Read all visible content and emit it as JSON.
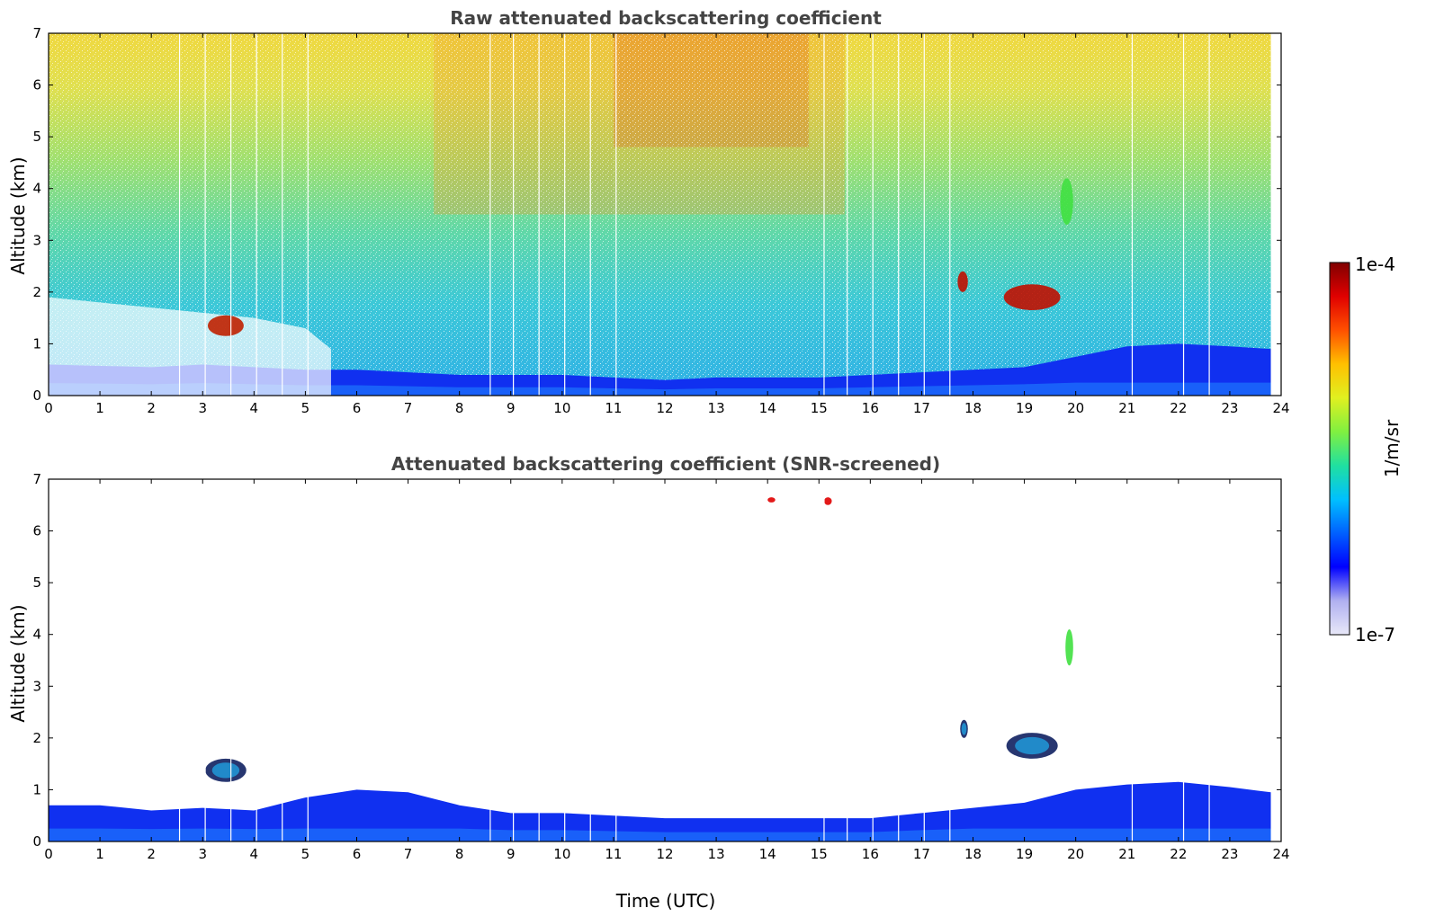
{
  "chart_data": [
    {
      "type": "heatmap",
      "title": "Raw attenuated backscattering coefficient",
      "xlabel": "",
      "ylabel": "Altitude (km)",
      "xlim": [
        0,
        24
      ],
      "ylim": [
        0,
        7
      ],
      "xticks": [
        "0",
        "1",
        "2",
        "3",
        "4",
        "5",
        "6",
        "7",
        "8",
        "9",
        "10",
        "11",
        "12",
        "13",
        "14",
        "15",
        "16",
        "17",
        "18",
        "19",
        "20",
        "21",
        "22",
        "23",
        "24"
      ],
      "yticks": [
        "0",
        "1",
        "2",
        "3",
        "4",
        "5",
        "6",
        "7"
      ],
      "data_end_time": 23.8,
      "gap_times": [
        2.55,
        3.05,
        3.55,
        4.05,
        4.55,
        5.05,
        8.6,
        9.05,
        9.55,
        10.05,
        10.55,
        11.05,
        15.1,
        15.55,
        16.05,
        16.55,
        17.05,
        17.55,
        21.1,
        22.1,
        22.6
      ],
      "features": [
        {
          "name": "boundary layer",
          "t": [
            0,
            2,
            3,
            4,
            5,
            6,
            7,
            8,
            9,
            10,
            11,
            12,
            13,
            14,
            15,
            16,
            17,
            18,
            19,
            20,
            21,
            22,
            23,
            23.8
          ],
          "top_km": [
            0.6,
            0.55,
            0.6,
            0.55,
            0.5,
            0.5,
            0.45,
            0.4,
            0.4,
            0.4,
            0.35,
            0.3,
            0.35,
            0.35,
            0.35,
            0.4,
            0.45,
            0.5,
            0.55,
            0.75,
            0.95,
            1.0,
            0.95,
            0.9
          ]
        },
        {
          "name": "aerosol layer",
          "t": [
            0,
            1,
            2,
            3,
            4,
            5,
            5.5
          ],
          "top_km": [
            1.9,
            1.8,
            1.7,
            1.6,
            1.5,
            1.3,
            0.9
          ]
        },
        {
          "name": "low cloud",
          "t_start": 3.1,
          "t_end": 3.8,
          "z_bottom_km": 1.15,
          "z_top_km": 1.55
        },
        {
          "name": "cloud",
          "t_start": 18.6,
          "t_end": 19.7,
          "z_bottom_km": 1.65,
          "z_top_km": 2.15
        },
        {
          "name": "cloud",
          "t_start": 17.7,
          "t_end": 17.9,
          "z_bottom_km": 2.0,
          "z_top_km": 2.4
        },
        {
          "name": "cloud",
          "t_start": 19.7,
          "t_end": 19.95,
          "z_bottom_km": 3.3,
          "z_top_km": 4.2
        }
      ]
    },
    {
      "type": "heatmap",
      "title": "Attenuated backscattering coefficient (SNR-screened)",
      "xlabel": "Time (UTC)",
      "ylabel": "Altitude (km)",
      "xlim": [
        0,
        24
      ],
      "ylim": [
        0,
        7
      ],
      "xticks": [
        "0",
        "1",
        "2",
        "3",
        "4",
        "5",
        "6",
        "7",
        "8",
        "9",
        "10",
        "11",
        "12",
        "13",
        "14",
        "15",
        "16",
        "17",
        "18",
        "19",
        "20",
        "21",
        "22",
        "23",
        "24"
      ],
      "yticks": [
        "0",
        "1",
        "2",
        "3",
        "4",
        "5",
        "6",
        "7"
      ],
      "data_end_time": 23.8,
      "gap_times": [
        2.55,
        3.05,
        3.55,
        4.05,
        4.55,
        5.05,
        8.6,
        9.05,
        9.55,
        10.05,
        10.55,
        11.05,
        15.1,
        15.55,
        16.05,
        16.55,
        17.05,
        17.55,
        21.1,
        22.1,
        22.6
      ],
      "features": [
        {
          "name": "boundary layer",
          "t": [
            0,
            1,
            2,
            3,
            4,
            5,
            6,
            7,
            8,
            9,
            10,
            11,
            12,
            13,
            14,
            15,
            16,
            17,
            18,
            19,
            20,
            21,
            22,
            23,
            23.8
          ],
          "top_km": [
            0.7,
            0.7,
            0.6,
            0.65,
            0.6,
            0.85,
            1.0,
            0.95,
            0.7,
            0.55,
            0.55,
            0.5,
            0.45,
            0.45,
            0.45,
            0.45,
            0.45,
            0.55,
            0.65,
            0.75,
            1.0,
            1.1,
            1.15,
            1.05,
            0.95
          ]
        },
        {
          "name": "low cloud",
          "t_start": 3.05,
          "t_end": 3.85,
          "z_bottom_km": 1.15,
          "z_top_km": 1.6
        },
        {
          "name": "cloud",
          "t_start": 18.65,
          "t_end": 19.65,
          "z_bottom_km": 1.6,
          "z_top_km": 2.1
        },
        {
          "name": "cloud",
          "t_start": 17.75,
          "t_end": 17.9,
          "z_bottom_km": 2.0,
          "z_top_km": 2.35
        },
        {
          "name": "cloud",
          "t_start": 19.8,
          "t_end": 19.95,
          "z_bottom_km": 3.4,
          "z_top_km": 4.1
        },
        {
          "name": "high cloud",
          "t_start": 14.0,
          "t_end": 14.15,
          "z_bottom_km": 6.55,
          "z_top_km": 6.65
        },
        {
          "name": "high cloud",
          "t_start": 15.1,
          "t_end": 15.25,
          "z_bottom_km": 6.5,
          "z_top_km": 6.65
        }
      ]
    }
  ],
  "colorbar": {
    "label": "1/m/sr",
    "max_label": "1e-4",
    "min_label": "1e-7",
    "scale": "log",
    "colormap": "jet",
    "colors": [
      "#e8e8f8",
      "#b0b0f0",
      "#0000ff",
      "#0060ff",
      "#00c0ff",
      "#20e0a0",
      "#80f040",
      "#e0f020",
      "#ffc000",
      "#ff5000",
      "#e00000",
      "#800000"
    ]
  }
}
